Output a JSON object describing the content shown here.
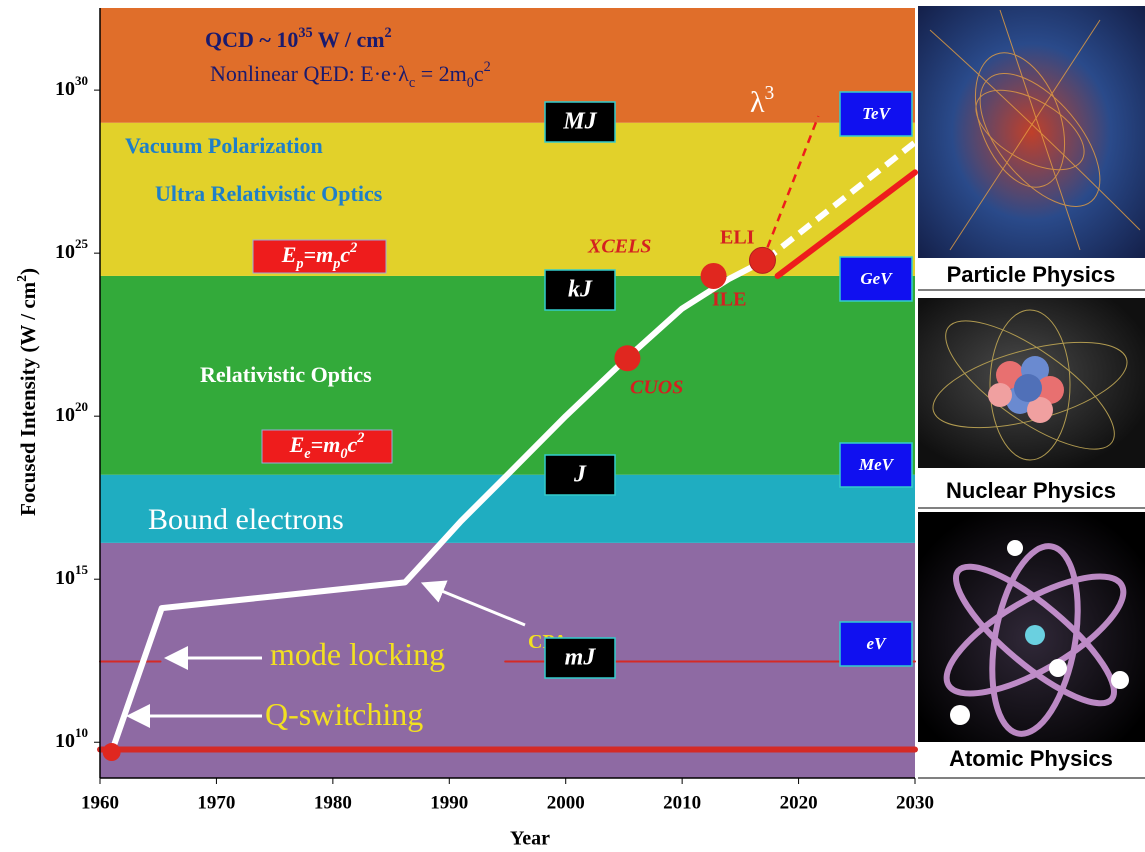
{
  "chart_data": {
    "type": "line",
    "log_scale": true,
    "x_label": "Year",
    "y_label": [
      {
        "text": "Focused Intensity (W / cm",
        "style": "normal"
      },
      {
        "text": "2",
        "style": "sup"
      },
      {
        "text": ")",
        "style": "normal"
      }
    ],
    "xlim": [
      1960,
      2030
    ],
    "xticks": [
      1960,
      1970,
      1980,
      1990,
      2000,
      2010,
      2020,
      2030
    ],
    "ylim": [
      800000000.0,
      3.3e+32
    ],
    "yticks": [
      {
        "value": 10000000000.0,
        "label": "10",
        "exponent": "10"
      },
      {
        "value": 1000000000000000.0,
        "label": "10",
        "exponent": "15"
      },
      {
        "value": 1e+20,
        "label": "10",
        "exponent": "20"
      },
      {
        "value": 1e+25,
        "label": "10",
        "exponent": "25"
      },
      {
        "value": 1e+30,
        "label": "10",
        "exponent": "30"
      }
    ],
    "bands": [
      {
        "color": "#8e6aa3",
        "range": [
          800000000.0,
          1.3e+16
        ]
      },
      {
        "color": "#1fadc1",
        "range": [
          1.3e+16,
          1.6e+18
        ]
      },
      {
        "color": "#33aa3a",
        "range": [
          1.6e+18,
          2e+24
        ]
      },
      {
        "color": "#e2d12a",
        "range": [
          2e+24,
          1e+29
        ]
      },
      {
        "color": "#e06e2a",
        "range": [
          1e+29,
          3.3e+32
        ]
      }
    ],
    "series": [
      {
        "color": "#d42a26",
        "line_style": "solid",
        "x": [
          1960,
          2030
        ],
        "values": [
          6000000000.0,
          6000000000.0
        ]
      },
      {
        "color": "#d42a26",
        "line_style": "thin",
        "x": [
          1960,
          1965.2,
          1990,
          1994.8,
          2030
        ],
        "values": [
          3000000000000.0,
          3000000000000.0,
          null,
          3000000000000.0,
          3000000000000.0
        ]
      },
      {
        "color": "#ffffff",
        "line_style": "solid",
        "x": [
          1961,
          1965.3,
          1975,
          1986.2,
          1988,
          1991,
          1995,
          2000,
          2005,
          2010,
          2014,
          2017.1
        ],
        "values": [
          5000000000.0,
          130000000000000.0,
          300000000000000.0,
          800000000000000.0,
          4000000000000000.0,
          6e+16,
          1.6e+18,
          1e+20,
          5e+21,
          2e+23,
          1.6e+24,
          6e+24
        ]
      },
      {
        "color": "#ffffff",
        "line_style": "dashed",
        "x": [
          2017.1,
          2030
        ],
        "values": [
          6e+24,
          2.5e+28
        ]
      },
      {
        "color": "#ee1c1c",
        "line_style": "solid",
        "x": [
          2018.2,
          2030
        ],
        "values": [
          2e+24,
          3e+27
        ]
      },
      {
        "color": "#ee1c1c",
        "line_style": "thin-dashed",
        "x": [
          2016.9,
          2021.7
        ],
        "values": [
          6e+24,
          1.6e+29
        ]
      }
    ],
    "points": {
      "color": "#e0271f",
      "x": [
        1961,
        2012.7,
        2016.9,
        2005.3
      ],
      "values": [
        5000000000.0,
        2e+24,
        6e+24,
        6e+21
      ],
      "labels": [
        null,
        "XCELS",
        "ELI",
        "CUOS"
      ]
    },
    "extra_point_label": "ILE",
    "annotations": [
      [
        {
          "text": "QCD ~ 10",
          "style": "normal"
        },
        {
          "text": "35",
          "style": "sup"
        },
        {
          "text": " W / cm",
          "style": "normal"
        },
        {
          "text": "2",
          "style": "sup"
        }
      ],
      [
        {
          "text": "Nonlinear QED: E·e·λ",
          "style": "normal"
        },
        {
          "text": "c",
          "style": "sub"
        },
        {
          "text": " = 2m",
          "style": "normal"
        },
        {
          "text": "0",
          "style": "sub"
        },
        {
          "text": "c",
          "style": "normal"
        },
        {
          "text": "2",
          "style": "sup"
        }
      ],
      [
        {
          "text": "Vacuum Polarization",
          "style": "normal"
        }
      ],
      [
        {
          "text": "Ultra Relativistic Optics",
          "style": "normal"
        }
      ],
      [
        {
          "text": "Relativistic Optics",
          "style": "normal"
        }
      ],
      [
        {
          "text": "Bound electrons",
          "style": "normal"
        }
      ],
      [
        {
          "text": "λ",
          "style": "normal"
        },
        {
          "text": "3",
          "style": "sup"
        }
      ],
      [
        {
          "text": "mode locking",
          "style": "normal"
        }
      ],
      [
        {
          "text": "Q-switching",
          "style": "normal"
        }
      ],
      [
        {
          "text": "CPA",
          "style": "normal"
        }
      ]
    ],
    "threshold_boxes": [
      [
        {
          "text": "E",
          "style": "normal"
        },
        {
          "text": "p",
          "style": "sub"
        },
        {
          "text": "=m",
          "style": "normal"
        },
        {
          "text": "p",
          "style": "sub"
        },
        {
          "text": "c",
          "style": "normal"
        },
        {
          "text": "2",
          "style": "sup"
        }
      ],
      [
        {
          "text": "E",
          "style": "normal"
        },
        {
          "text": "e",
          "style": "sub"
        },
        {
          "text": "=m",
          "style": "normal"
        },
        {
          "text": "0",
          "style": "sub"
        },
        {
          "text": "c",
          "style": "normal"
        },
        {
          "text": "2",
          "style": "sup"
        }
      ]
    ],
    "energy_boxes": [
      "MJ",
      "kJ",
      "J",
      "mJ"
    ],
    "scale_boxes": [
      "TeV",
      "GeV",
      "MeV",
      "eV"
    ],
    "image_captions": [
      "Particle Physics",
      "Nuclear Physics",
      "Atomic Physics"
    ]
  }
}
